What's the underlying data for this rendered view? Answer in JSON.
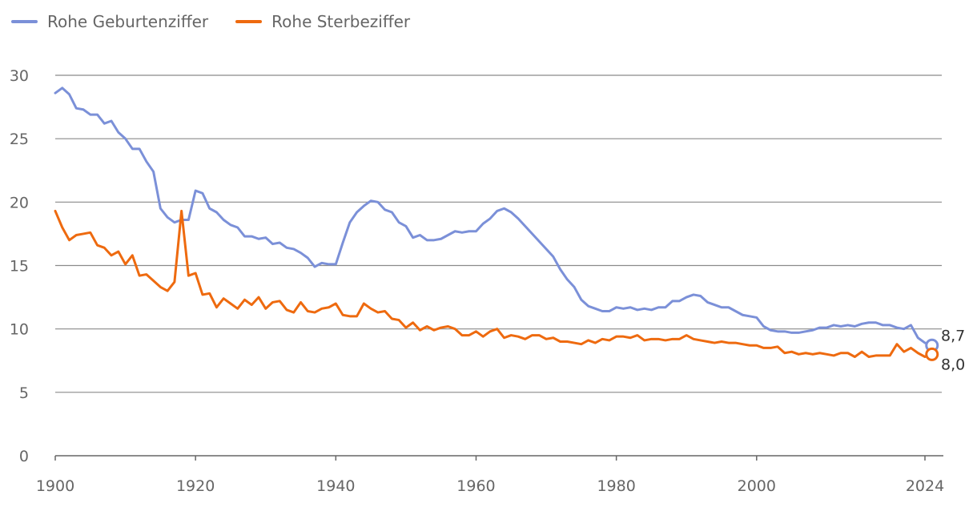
{
  "chart_data": {
    "type": "line",
    "title": "",
    "xlabel": "",
    "ylabel": "",
    "xlim": [
      1900,
      2024
    ],
    "ylim": [
      0,
      30
    ],
    "grid": true,
    "legend_position": "top-left",
    "x_ticks": [
      1900,
      1920,
      1940,
      1960,
      1980,
      2000,
      2024
    ],
    "y_ticks": [
      0,
      5,
      10,
      15,
      20,
      25,
      30
    ],
    "x_start": 1900,
    "series": [
      {
        "name": "Rohe Geburtenziffer",
        "color": "#7b90d8",
        "end_label": "8,7",
        "values": [
          28.6,
          29.0,
          28.5,
          27.4,
          27.3,
          26.9,
          26.9,
          26.2,
          26.4,
          25.5,
          25.0,
          24.2,
          24.2,
          23.2,
          22.4,
          19.5,
          18.8,
          18.4,
          18.6,
          18.6,
          20.9,
          20.7,
          19.5,
          19.2,
          18.6,
          18.2,
          18.0,
          17.3,
          17.3,
          17.1,
          17.2,
          16.7,
          16.8,
          16.4,
          16.3,
          16.0,
          15.6,
          14.9,
          15.2,
          15.1,
          15.1,
          16.8,
          18.4,
          19.2,
          19.7,
          20.1,
          20.0,
          19.4,
          19.2,
          18.4,
          18.1,
          17.2,
          17.4,
          17.0,
          17.0,
          17.1,
          17.4,
          17.7,
          17.6,
          17.7,
          17.7,
          18.3,
          18.7,
          19.3,
          19.5,
          19.2,
          18.7,
          18.1,
          17.5,
          16.9,
          16.3,
          15.7,
          14.7,
          13.9,
          13.3,
          12.3,
          11.8,
          11.6,
          11.4,
          11.4,
          11.7,
          11.6,
          11.7,
          11.5,
          11.6,
          11.5,
          11.7,
          11.7,
          12.2,
          12.2,
          12.5,
          12.7,
          12.6,
          12.1,
          11.9,
          11.7,
          11.7,
          11.4,
          11.1,
          11.0,
          10.9,
          10.2,
          9.9,
          9.8,
          9.8,
          9.7,
          9.7,
          9.8,
          9.9,
          10.1,
          10.1,
          10.3,
          10.2,
          10.3,
          10.2,
          10.4,
          10.5,
          10.5,
          10.3,
          10.3,
          10.1,
          10.0,
          10.3,
          9.3,
          8.9,
          8.7
        ]
      },
      {
        "name": "Rohe Sterbeziffer",
        "color": "#ee6a0f",
        "end_label": "8,0",
        "values": [
          19.3,
          18.0,
          17.0,
          17.4,
          17.5,
          17.6,
          16.6,
          16.4,
          15.8,
          16.1,
          15.1,
          15.8,
          14.2,
          14.3,
          13.8,
          13.3,
          13.0,
          13.7,
          19.3,
          14.2,
          14.4,
          12.7,
          12.8,
          11.7,
          12.4,
          12.0,
          11.6,
          12.3,
          11.9,
          12.5,
          11.6,
          12.1,
          12.2,
          11.5,
          11.3,
          12.1,
          11.4,
          11.3,
          11.6,
          11.7,
          12.0,
          11.1,
          11.0,
          11.0,
          12.0,
          11.6,
          11.3,
          11.4,
          10.8,
          10.7,
          10.1,
          10.5,
          9.9,
          10.2,
          9.9,
          10.1,
          10.2,
          10.0,
          9.5,
          9.5,
          9.8,
          9.4,
          9.8,
          10.0,
          9.3,
          9.5,
          9.4,
          9.2,
          9.5,
          9.5,
          9.2,
          9.3,
          9.0,
          9.0,
          8.9,
          8.8,
          9.1,
          8.9,
          9.2,
          9.1,
          9.4,
          9.4,
          9.3,
          9.5,
          9.1,
          9.2,
          9.2,
          9.1,
          9.2,
          9.2,
          9.5,
          9.2,
          9.1,
          9.0,
          8.9,
          9.0,
          8.9,
          8.9,
          8.8,
          8.7,
          8.7,
          8.5,
          8.5,
          8.6,
          8.1,
          8.2,
          8.0,
          8.1,
          8.0,
          8.1,
          8.0,
          7.9,
          8.1,
          8.1,
          7.8,
          8.2,
          7.8,
          7.9,
          7.9,
          7.9,
          8.8,
          8.2,
          8.5,
          8.1,
          7.8,
          8.0
        ]
      }
    ]
  }
}
